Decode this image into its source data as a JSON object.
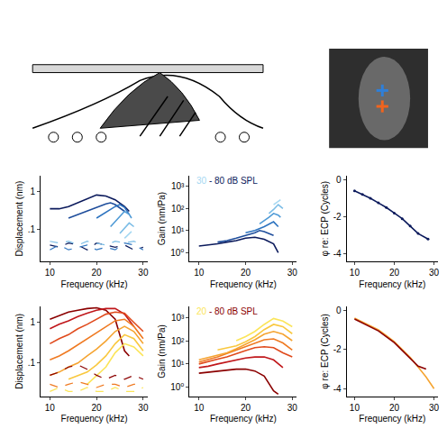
{
  "chart_data": [
    {
      "type": "line",
      "xlabel": "Frequency (kHz)",
      "ylabel": "Displacement (nm)",
      "xlim": [
        8,
        31
      ],
      "xticks": [
        10,
        20,
        30
      ],
      "ylim": [
        0.015,
        2.5
      ],
      "yticks": [
        {
          "value": 0.1,
          "label": ".1"
        },
        1
      ],
      "log": "y",
      "grid": false,
      "series": [
        {
          "color": "#0b1a5c",
          "line_style": "solid",
          "x": [
            10,
            12,
            14,
            16,
            18,
            20,
            22,
            24,
            26,
            27
          ],
          "values": [
            0.35,
            0.35,
            0.4,
            0.5,
            0.65,
            0.8,
            0.75,
            0.6,
            0.4,
            0.3
          ]
        },
        {
          "color": "#1f4e9c",
          "line_style": "solid",
          "x": [
            14,
            16,
            18,
            20,
            22,
            23,
            24,
            26
          ],
          "values": [
            0.2,
            0.25,
            0.3,
            0.38,
            0.47,
            0.5,
            0.45,
            0.3
          ]
        },
        {
          "color": "#2e74c0",
          "line_style": "solid",
          "x": [
            20,
            22,
            24,
            25,
            26,
            27
          ],
          "values": [
            0.2,
            0.28,
            0.4,
            0.45,
            0.38,
            0.25
          ]
        },
        {
          "color": "#4f9ad6",
          "line_style": "solid",
          "x": [
            23,
            24,
            25,
            26,
            27,
            27.5
          ],
          "values": [
            0.12,
            0.16,
            0.22,
            0.3,
            0.25,
            0.2
          ]
        },
        {
          "color": "#7cbde6",
          "line_style": "solid",
          "x": [
            25,
            26,
            27,
            28
          ],
          "values": [
            0.08,
            0.11,
            0.15,
            0.12
          ]
        },
        {
          "color": "#a6d8f2",
          "line_style": "solid",
          "x": [
            26,
            27,
            27.5
          ],
          "values": [
            0.06,
            0.08,
            0.09
          ]
        },
        {
          "color": "#0b1a5c",
          "line_style": "dash",
          "x": [
            10,
            12,
            14,
            16,
            18,
            20,
            22,
            24,
            26,
            28,
            30
          ],
          "values": [
            0.04,
            0.035,
            0.045,
            0.04,
            0.03,
            0.045,
            0.04,
            0.035,
            0.04,
            0.03,
            0.035
          ]
        },
        {
          "color": "#2e74c0",
          "line_style": "dash",
          "x": [
            10,
            12,
            14,
            16,
            18,
            20,
            22,
            24,
            26,
            28,
            30
          ],
          "values": [
            0.03,
            0.04,
            0.03,
            0.035,
            0.04,
            0.03,
            0.035,
            0.03,
            0.045,
            0.04,
            0.03
          ]
        },
        {
          "color": "#7cbde6",
          "line_style": "dash",
          "x": [
            10,
            12,
            14,
            16,
            18,
            20,
            22,
            24,
            26,
            28,
            30
          ],
          "values": [
            0.05,
            0.045,
            0.05,
            0.04,
            0.05,
            0.045,
            0.04,
            0.05,
            0.045,
            0.05,
            0.04
          ]
        }
      ]
    },
    {
      "type": "line",
      "xlabel": "Frequency (kHz)",
      "ylabel": "Gain (nm/Pa)",
      "annotation": "30 - 80 dB SPL",
      "xlim": [
        8,
        31
      ],
      "xticks": [
        10,
        20,
        30
      ],
      "ylim": [
        0.4,
        3000
      ],
      "yticks": [
        {
          "value": 1,
          "label": "10⁰"
        },
        {
          "value": 10,
          "label": "10¹"
        },
        {
          "value": 100,
          "label": "10²"
        },
        {
          "value": 1000,
          "label": "10³"
        }
      ],
      "log": "y",
      "grid": false,
      "series": [
        {
          "color": "#0b1a5c",
          "line_style": "solid",
          "x": [
            10,
            12,
            14,
            16,
            18,
            20,
            22,
            24,
            26,
            27
          ],
          "values": [
            2,
            2.2,
            2.5,
            3,
            3.5,
            4.5,
            5,
            4,
            2.5,
            1
          ]
        },
        {
          "color": "#1f4e9c",
          "line_style": "solid",
          "x": [
            14,
            16,
            18,
            20,
            22,
            23,
            24,
            26
          ],
          "values": [
            3,
            3.5,
            4.5,
            6,
            8,
            10,
            9,
            6
          ]
        },
        {
          "color": "#2e74c0",
          "line_style": "solid",
          "x": [
            20,
            22,
            24,
            25,
            26,
            27
          ],
          "values": [
            8,
            10,
            15,
            20,
            25,
            15
          ]
        },
        {
          "color": "#4f9ad6",
          "line_style": "solid",
          "x": [
            23,
            24,
            25,
            26,
            27,
            27.5
          ],
          "values": [
            20,
            28,
            40,
            60,
            50,
            40
          ]
        },
        {
          "color": "#7cbde6",
          "line_style": "solid",
          "x": [
            25,
            26,
            27,
            28
          ],
          "values": [
            60,
            90,
            150,
            100
          ]
        },
        {
          "color": "#a6d8f2",
          "line_style": "solid",
          "x": [
            26,
            27,
            27.5
          ],
          "values": [
            150,
            200,
            250
          ]
        }
      ]
    },
    {
      "type": "line",
      "xlabel": "Frequency (kHz)",
      "ylabel": "φ re: ECP (Cycles)",
      "xlim": [
        8,
        31
      ],
      "xticks": [
        10,
        20,
        30
      ],
      "ylim": [
        -4.4,
        0.2
      ],
      "yticks": [
        -4,
        -2,
        0
      ],
      "grid": false,
      "series": [
        {
          "color": "#0b1a5c",
          "line_style": "solid",
          "marker": "circle",
          "x": [
            10,
            12,
            14,
            16,
            18,
            20,
            22,
            24,
            26,
            28.5
          ],
          "values": [
            -0.6,
            -0.8,
            -1.0,
            -1.25,
            -1.5,
            -1.8,
            -2.1,
            -2.5,
            -2.9,
            -3.2
          ]
        }
      ]
    },
    {
      "type": "line",
      "xlabel": "Frequency (kHz)",
      "ylabel": "Displacement (nm)",
      "xlim": [
        8,
        31
      ],
      "xticks": [
        10,
        20,
        30
      ],
      "ylim": [
        0.015,
        2.5
      ],
      "yticks": [
        {
          "value": 0.1,
          "label": ".1"
        },
        1
      ],
      "log": "y",
      "grid": false,
      "series": [
        {
          "color": "#8b0000",
          "line_style": "solid",
          "x": [
            10,
            12,
            14,
            16,
            18,
            20,
            22,
            24,
            25,
            26,
            27
          ],
          "values": [
            1.2,
            1.5,
            1.8,
            2,
            2.2,
            2.3,
            2,
            1.2,
            0.5,
            0.2,
            0.15
          ]
        },
        {
          "color": "#c0171b",
          "line_style": "solid",
          "x": [
            10,
            12,
            14,
            16,
            18,
            20,
            22,
            24,
            26,
            28
          ],
          "values": [
            0.7,
            0.9,
            1.1,
            1.4,
            1.7,
            2,
            2.2,
            2.2,
            1.6,
            0.8
          ]
        },
        {
          "color": "#e04a1c",
          "line_style": "solid",
          "x": [
            10,
            12,
            14,
            16,
            18,
            20,
            22,
            24,
            26,
            28,
            30
          ],
          "values": [
            0.3,
            0.4,
            0.5,
            0.7,
            0.9,
            1.2,
            1.6,
            1.8,
            1.7,
            1.0,
            0.6
          ]
        },
        {
          "color": "#ef7a22",
          "line_style": "solid",
          "x": [
            10,
            12,
            14,
            16,
            18,
            20,
            22,
            24,
            26,
            28,
            30
          ],
          "values": [
            0.12,
            0.15,
            0.2,
            0.28,
            0.4,
            0.55,
            0.8,
            1.1,
            1.2,
            0.8,
            0.4
          ]
        },
        {
          "color": "#f5a431",
          "line_style": "solid",
          "x": [
            10,
            12,
            14,
            16,
            18,
            20,
            22,
            24,
            26,
            28,
            30
          ],
          "values": [
            0.05,
            0.06,
            0.08,
            0.1,
            0.15,
            0.22,
            0.35,
            0.6,
            0.8,
            0.6,
            0.3
          ]
        },
        {
          "color": "#f9c83f",
          "line_style": "solid",
          "x": [
            14,
            16,
            18,
            20,
            22,
            24,
            26,
            28,
            30
          ],
          "values": [
            0.04,
            0.05,
            0.06,
            0.09,
            0.15,
            0.3,
            0.5,
            0.4,
            0.2
          ]
        },
        {
          "color": "#fbe55a",
          "line_style": "solid",
          "x": [
            18,
            20,
            22,
            24,
            26,
            28,
            30
          ],
          "values": [
            0.03,
            0.05,
            0.08,
            0.18,
            0.3,
            0.25,
            0.15
          ]
        },
        {
          "color": "#8b0000",
          "line_style": "dash",
          "x": [
            10,
            12,
            14,
            16,
            18,
            20,
            22,
            24,
            26,
            28,
            30
          ],
          "values": [
            0.05,
            0.06,
            0.08,
            0.09,
            0.07,
            0.05,
            0.04,
            0.05,
            0.04,
            0.05,
            0.04
          ]
        },
        {
          "color": "#ef7a22",
          "line_style": "dash",
          "x": [
            10,
            12,
            14,
            16,
            18,
            20,
            22,
            24,
            26,
            28,
            30
          ],
          "values": [
            0.03,
            0.025,
            0.03,
            0.035,
            0.03,
            0.025,
            0.03,
            0.03,
            0.025,
            0.03,
            0.03
          ]
        },
        {
          "color": "#fbe55a",
          "line_style": "dash",
          "x": [
            10,
            12,
            14,
            16,
            18,
            20,
            22,
            24,
            26,
            28,
            30
          ],
          "values": [
            0.02,
            0.025,
            0.02,
            0.02,
            0.025,
            0.02,
            0.02,
            0.025,
            0.02,
            0.02,
            0.025
          ]
        }
      ]
    },
    {
      "type": "line",
      "xlabel": "Frequency (kHz)",
      "ylabel": "Gain (nm/Pa)",
      "annotation": "20 - 80 dB SPL",
      "xlim": [
        8,
        31
      ],
      "xticks": [
        10,
        20,
        30
      ],
      "ylim": [
        0.4,
        3000
      ],
      "yticks": [
        {
          "value": 1,
          "label": "10⁰"
        },
        {
          "value": 10,
          "label": "10¹"
        },
        {
          "value": 100,
          "label": "10²"
        },
        {
          "value": 1000,
          "label": "10³"
        }
      ],
      "log": "y",
      "grid": false,
      "series": [
        {
          "color": "#8b0000",
          "line_style": "solid",
          "x": [
            10,
            12,
            14,
            16,
            18,
            20,
            22,
            24,
            25,
            26,
            27
          ],
          "values": [
            4,
            4.5,
            5,
            5.5,
            6,
            6,
            5,
            3,
            1.5,
            0.7,
            0.5
          ]
        },
        {
          "color": "#c0171b",
          "line_style": "solid",
          "x": [
            10,
            12,
            14,
            16,
            18,
            20,
            22,
            24,
            26,
            28
          ],
          "values": [
            7,
            8,
            10,
            12,
            15,
            18,
            20,
            20,
            15,
            7
          ]
        },
        {
          "color": "#e04a1c",
          "line_style": "solid",
          "x": [
            10,
            12,
            14,
            16,
            18,
            20,
            22,
            24,
            26,
            28,
            30
          ],
          "values": [
            10,
            13,
            16,
            20,
            28,
            38,
            50,
            55,
            50,
            30,
            20
          ]
        },
        {
          "color": "#ef7a22",
          "line_style": "solid",
          "x": [
            10,
            12,
            14,
            16,
            18,
            20,
            22,
            24,
            26,
            28,
            30
          ],
          "values": [
            12,
            15,
            20,
            28,
            40,
            55,
            80,
            110,
            120,
            80,
            40
          ]
        },
        {
          "color": "#f5a431",
          "line_style": "solid",
          "x": [
            10,
            12,
            14,
            16,
            18,
            20,
            22,
            24,
            26,
            28,
            30
          ],
          "values": [
            15,
            19,
            25,
            30,
            45,
            70,
            110,
            190,
            250,
            190,
            100
          ]
        },
        {
          "color": "#f9c83f",
          "line_style": "solid",
          "x": [
            14,
            16,
            18,
            20,
            22,
            24,
            26,
            28,
            30
          ],
          "values": [
            40,
            50,
            60,
            90,
            150,
            300,
            500,
            400,
            200
          ]
        },
        {
          "color": "#fbe55a",
          "line_style": "solid",
          "x": [
            18,
            20,
            22,
            24,
            26,
            28,
            30
          ],
          "values": [
            100,
            150,
            250,
            500,
            900,
            700,
            400
          ]
        }
      ]
    },
    {
      "type": "line",
      "xlabel": "Frequency (kHz)",
      "ylabel": "φ re: ECP (Cycles)",
      "xlim": [
        8,
        31
      ],
      "xticks": [
        10,
        20,
        30
      ],
      "ylim": [
        -4.4,
        0.2
      ],
      "yticks": [
        -4,
        -2,
        0
      ],
      "grid": false,
      "series": [
        {
          "color": "#f5a431",
          "line_style": "solid",
          "x": [
            10,
            12,
            14,
            16,
            18,
            20,
            22,
            24,
            26,
            28,
            30
          ],
          "values": [
            -0.4,
            -0.6,
            -0.8,
            -1.0,
            -1.3,
            -1.6,
            -2.0,
            -2.4,
            -2.9,
            -3.4,
            -4.0
          ]
        },
        {
          "color": "#8b0000",
          "line_style": "solid",
          "x": [
            10,
            12,
            14,
            16,
            18,
            20,
            22,
            24,
            26,
            28
          ],
          "values": [
            -0.45,
            -0.65,
            -0.85,
            -1.05,
            -1.35,
            -1.65,
            -2.05,
            -2.45,
            -2.85,
            -3.0
          ]
        }
      ]
    }
  ]
}
